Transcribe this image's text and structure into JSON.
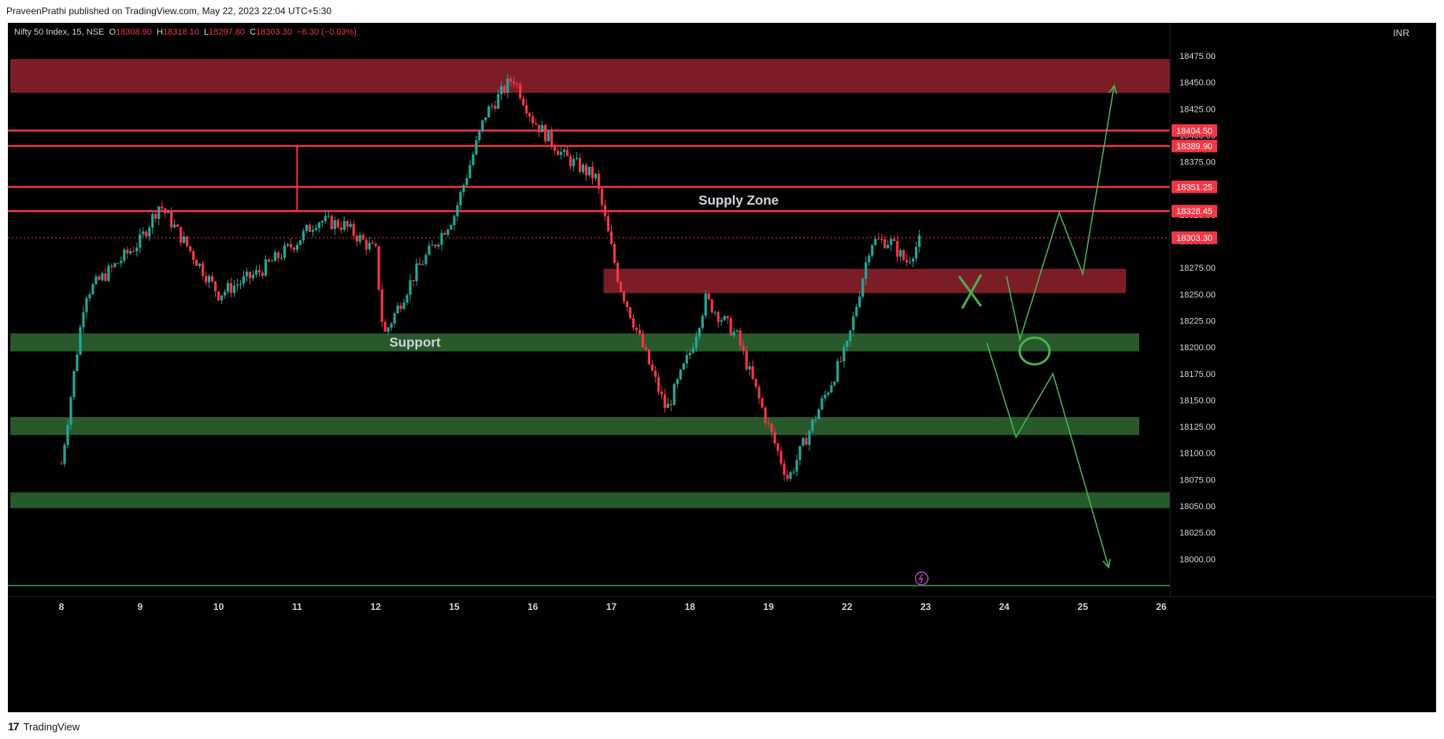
{
  "header": {
    "publisher_text": "PraveenPrathi published on TradingView.com, May 22, 2023 22:04 UTC+5:30"
  },
  "legend": {
    "symbol": "Nifty 50 Index, 15, NSE",
    "o_label": "O",
    "o_value": "18308.90",
    "h_label": "H",
    "h_value": "18318.10",
    "l_label": "L",
    "l_value": "18297.80",
    "c_label": "C",
    "c_value": "18303.30",
    "change": "−6.30 (−0.03%)"
  },
  "axis": {
    "currency": "INR"
  },
  "footer": {
    "brand": "TradingView",
    "brand_mark": "17"
  },
  "colors": {
    "background": "#000000",
    "up": "#26a69a",
    "down": "#f23645",
    "supply_zone": "#7b1d26",
    "support_zone": "#27592b",
    "level_line": "#f23645",
    "drawing": "#4caf50"
  },
  "chart_data": {
    "type": "candlestick",
    "y_range": [
      17980,
      18490
    ],
    "y_ticks": [
      18475,
      18450,
      18425,
      18400,
      18375,
      18350,
      18325,
      18300,
      18275,
      18250,
      18225,
      18200,
      18175,
      18150,
      18125,
      18100,
      18075,
      18050,
      18025,
      18000
    ],
    "y_tick_labels": [
      "18475.00",
      "18450.00",
      "18425.00",
      "18400.00",
      "18375.00",
      "18350.00",
      "18325.00",
      "18300.00",
      "18275.00",
      "18250.00",
      "18225.00",
      "18200.00",
      "18175.00",
      "18150.00",
      "18125.00",
      "18100.00",
      "18075.00",
      "18050.00",
      "18025.00",
      "18000.00"
    ],
    "x_ticks": [
      "8",
      "9",
      "10",
      "11",
      "12",
      "15",
      "16",
      "17",
      "18",
      "19",
      "22",
      "23",
      "24",
      "25",
      "26"
    ],
    "x_tick_days": [
      1,
      2,
      3,
      4,
      5,
      6,
      7,
      8,
      9,
      10,
      11,
      12,
      13,
      14,
      15
    ],
    "x_range": [
      0.35,
      15.3
    ],
    "close_price": 18303.3,
    "price_labels": [
      {
        "value": 18404.5,
        "text": "18404.50"
      },
      {
        "value": 18389.9,
        "text": "18389.90"
      },
      {
        "value": 18351.25,
        "text": "18351.25"
      },
      {
        "value": 18328.45,
        "text": "18328.45"
      },
      {
        "value": 18303.3,
        "text": "18303.30"
      }
    ],
    "zones": [
      {
        "kind": "supply",
        "label": "",
        "x1": 0.35,
        "x2": 15.2,
        "y1": 18440,
        "y2": 18472
      },
      {
        "kind": "supply",
        "label": "",
        "x1": 7.9,
        "x2": 14.55,
        "y1": 18251,
        "y2": 18274
      },
      {
        "kind": "support",
        "label": "Support",
        "x1": 0.35,
        "x2": 14.72,
        "y1": 18196,
        "y2": 18213
      },
      {
        "kind": "support",
        "label": "",
        "x1": 0.35,
        "x2": 14.72,
        "y1": 18117,
        "y2": 18134
      },
      {
        "kind": "support",
        "label": "",
        "x1": 0.35,
        "x2": 15.2,
        "y1": 18048,
        "y2": 18063
      }
    ],
    "levels": [
      18404.5,
      18389.9,
      18351.25,
      18328.45
    ],
    "annotations": [
      {
        "text": "Supply Zone",
        "x": 9.62,
        "y": 18339
      },
      {
        "text": "Support",
        "x": 5.5,
        "y": 18205
      }
    ],
    "projections": [
      {
        "name": "bullish",
        "points": [
          [
            13.03,
            18267
          ],
          [
            13.2,
            18207
          ],
          [
            13.7,
            18327
          ],
          [
            14.0,
            18269
          ],
          [
            14.4,
            18447
          ]
        ]
      },
      {
        "name": "bearish",
        "points": [
          [
            12.78,
            18204
          ],
          [
            13.15,
            18115
          ],
          [
            13.62,
            18175
          ],
          [
            14.33,
            17992
          ]
        ]
      }
    ],
    "anchors": [
      {
        "day": 1,
        "price": 18090
      },
      {
        "day": 1.3,
        "price": 18250
      },
      {
        "day": 2,
        "price": 18300
      },
      {
        "day": 2.25,
        "price": 18335
      },
      {
        "day": 3,
        "price": 18250
      },
      {
        "day": 3.5,
        "price": 18270
      },
      {
        "day": 4,
        "price": 18300
      },
      {
        "day": 4.25,
        "price": 18320
      },
      {
        "day": 4.6,
        "price": 18315
      },
      {
        "day": 5,
        "price": 18290
      },
      {
        "day": 5.1,
        "price": 18210
      },
      {
        "day": 5.5,
        "price": 18270
      },
      {
        "day": 6,
        "price": 18325
      },
      {
        "day": 6.4,
        "price": 18420
      },
      {
        "day": 6.75,
        "price": 18455
      },
      {
        "day": 7.0,
        "price": 18415
      },
      {
        "day": 7.4,
        "price": 18380
      },
      {
        "day": 7.8,
        "price": 18360
      },
      {
        "day": 8.1,
        "price": 18260
      },
      {
        "day": 8.4,
        "price": 18200
      },
      {
        "day": 8.7,
        "price": 18140
      },
      {
        "day": 9.0,
        "price": 18195
      },
      {
        "day": 9.2,
        "price": 18245
      },
      {
        "day": 9.6,
        "price": 18210
      },
      {
        "day": 10.0,
        "price": 18125
      },
      {
        "day": 10.25,
        "price": 18075
      },
      {
        "day": 10.6,
        "price": 18135
      },
      {
        "day": 11.0,
        "price": 18200
      },
      {
        "day": 11.3,
        "price": 18300
      },
      {
        "day": 11.55,
        "price": 18300
      },
      {
        "day": 11.75,
        "price": 18280
      },
      {
        "day": 11.95,
        "price": 18303
      }
    ]
  }
}
